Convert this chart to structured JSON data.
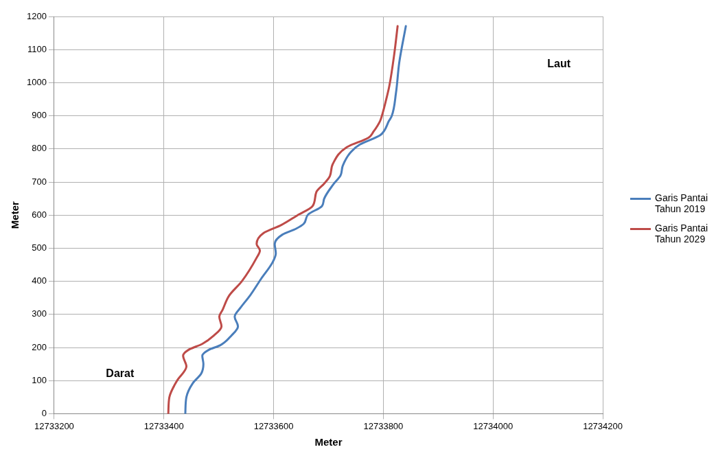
{
  "chart_data": {
    "type": "line",
    "xlabel": "Meter",
    "ylabel": "Meter",
    "xlim": [
      12733200,
      12734200
    ],
    "xticks": [
      12733200,
      12733400,
      12733600,
      12733800,
      12734000,
      12734200
    ],
    "ylim": [
      0,
      1200
    ],
    "yticks": [
      0,
      100,
      200,
      300,
      400,
      500,
      600,
      700,
      800,
      900,
      1000,
      1100,
      1200
    ],
    "grid": true,
    "legend": "right",
    "marker": "none",
    "line_style": "solid",
    "annotations": [
      "Darat",
      "Laut"
    ],
    "series": [
      {
        "name": "Garis Pantai Tahun 2019",
        "color": "#4a7ebb",
        "x": [
          12733439,
          12733441,
          12733453,
          12733468,
          12733472,
          12733470,
          12733482,
          12733503,
          12733523,
          12733535,
          12733529,
          12733540,
          12733557,
          12733577,
          12733598,
          12733604,
          12733602,
          12733616,
          12733641,
          12733655,
          12733663,
          12733688,
          12733692,
          12733708,
          12733722,
          12733726,
          12733741,
          12733757,
          12733794,
          12733802,
          12733810,
          12733815,
          12733823,
          12733829,
          12733841
        ],
        "values": [
          0,
          50,
          93,
          121,
          150,
          175,
          193,
          207,
          236,
          264,
          293,
          321,
          357,
          407,
          457,
          484,
          513,
          541,
          559,
          574,
          602,
          627,
          649,
          691,
          720,
          749,
          791,
          813,
          841,
          856,
          884,
          898,
          969,
          1061,
          1171
        ]
      },
      {
        "name": "Garis Pantai Tahun 2029",
        "color": "#be4b48",
        "x": [
          12733408,
          12733410,
          12733424,
          12733441,
          12733435,
          12733445,
          12733470,
          12733491,
          12733505,
          12733501,
          12733507,
          12733519,
          12733542,
          12733569,
          12733575,
          12733569,
          12733581,
          12733614,
          12733643,
          12733671,
          12733678,
          12733692,
          12733702,
          12733708,
          12733733,
          12733773,
          12733782,
          12733794,
          12733797,
          12733805,
          12733811,
          12733820,
          12733826
        ],
        "values": [
          0,
          50,
          100,
          143,
          175,
          193,
          211,
          236,
          264,
          293,
          314,
          357,
          400,
          471,
          493,
          513,
          545,
          570,
          599,
          627,
          670,
          695,
          716,
          755,
          805,
          834,
          852,
          884,
          898,
          948,
          991,
          1088,
          1171
        ]
      }
    ]
  }
}
